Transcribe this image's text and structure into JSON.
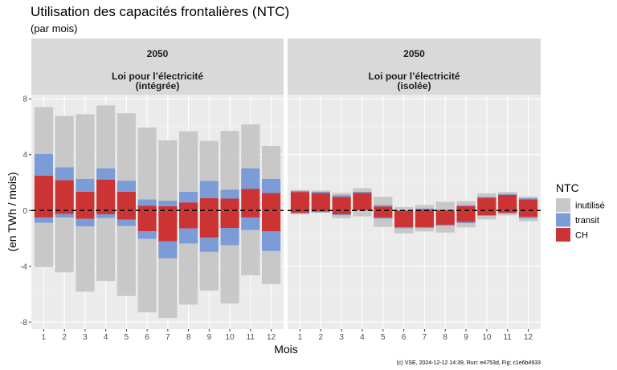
{
  "chart_data": {
    "type": "bar",
    "stacked": true,
    "title": "Utilisation des capacités frontalières (NTC)",
    "subtitle": "(par mois)",
    "xlabel": "Mois",
    "ylabel": "(en TWh / mois)",
    "categories": [
      "1",
      "2",
      "3",
      "4",
      "5",
      "6",
      "7",
      "8",
      "9",
      "10",
      "11",
      "12"
    ],
    "ylim": [
      -8.5,
      8.3
    ],
    "yticks": [
      -8,
      -4,
      0,
      4,
      8
    ],
    "ytick_labels": [
      "-8",
      "-4",
      "0",
      "4",
      "8"
    ],
    "grid": true,
    "reference_line": {
      "y": 0,
      "style": "dashed",
      "color": "#000000"
    },
    "legend": {
      "title": "NTC",
      "placement": "right",
      "entries": [
        {
          "name": "inutilisé",
          "color": "#C8C8C8"
        },
        {
          "name": "transit",
          "color": "#7B9CD6"
        },
        {
          "name": "CH",
          "color": "#CC3333"
        }
      ]
    },
    "panels": [
      {
        "strip_line1": "2050",
        "strip_line2": "Loi pour l’électricité",
        "strip_line3": "(intégrée)",
        "series": [
          {
            "name": "CH",
            "positive": [
              2.49,
              2.18,
              1.35,
              2.22,
              1.35,
              0.35,
              0.31,
              0.58,
              0.89,
              0.85,
              1.54,
              1.25
            ],
            "negative": [
              -0.5,
              -0.25,
              -0.6,
              -0.27,
              -0.66,
              -1.48,
              -2.2,
              -1.29,
              -1.95,
              -1.25,
              -0.5,
              -1.5
            ]
          },
          {
            "name": "transit",
            "positive": [
              1.56,
              0.92,
              0.92,
              0.81,
              0.79,
              0.44,
              0.4,
              0.77,
              1.23,
              0.65,
              1.49,
              1.02
            ],
            "negative": [
              -0.39,
              -0.25,
              -0.54,
              -0.27,
              -0.46,
              -0.56,
              -1.23,
              -1.08,
              -1.02,
              -1.24,
              -0.91,
              -1.41
            ]
          },
          {
            "name": "inutilisé",
            "positive": [
              3.37,
              3.68,
              4.63,
              4.5,
              4.83,
              5.16,
              4.32,
              4.33,
              2.87,
              4.2,
              3.14,
              2.35
            ],
            "negative": [
              -3.16,
              -3.93,
              -4.68,
              -4.51,
              -5.01,
              -5.26,
              -4.28,
              -4.37,
              -2.77,
              -4.18,
              -3.23,
              -2.37
            ]
          }
        ]
      },
      {
        "strip_line1": "2050",
        "strip_line2": "Loi pour l’électricité",
        "strip_line3": "(isolée)",
        "series": [
          {
            "name": "CH",
            "positive": [
              1.33,
              1.25,
              0.98,
              1.27,
              0.29,
              0.0,
              0.08,
              0.04,
              0.31,
              0.91,
              1.12,
              0.79
            ],
            "negative": [
              -0.17,
              -0.08,
              -0.27,
              0.0,
              -0.52,
              -1.21,
              -1.19,
              -1.02,
              -0.83,
              -0.33,
              -0.17,
              -0.46
            ]
          },
          {
            "name": "transit",
            "positive": [
              0.08,
              0.1,
              0.12,
              0.08,
              0.1,
              0.02,
              0.07,
              0.02,
              0.08,
              0.07,
              0.07,
              0.1
            ],
            "negative": [
              -0.06,
              -0.05,
              -0.08,
              -0.02,
              -0.08,
              -0.08,
              -0.08,
              -0.08,
              -0.09,
              -0.06,
              -0.06,
              -0.12
            ]
          },
          {
            "name": "inutilisé",
            "positive": [
              0.07,
              0.08,
              0.17,
              0.25,
              0.59,
              0.23,
              0.24,
              0.56,
              0.28,
              0.25,
              0.14,
              0.11
            ],
            "negative": [
              -0.06,
              -0.04,
              -0.21,
              -0.4,
              -0.58,
              -0.35,
              -0.23,
              -0.48,
              -0.29,
              -0.25,
              -0.12,
              -0.19
            ]
          }
        ]
      }
    ],
    "caption": "(c) VSE, 2024-12-12 14:39, Run: e4753d, Fig: c1e6b4933"
  }
}
